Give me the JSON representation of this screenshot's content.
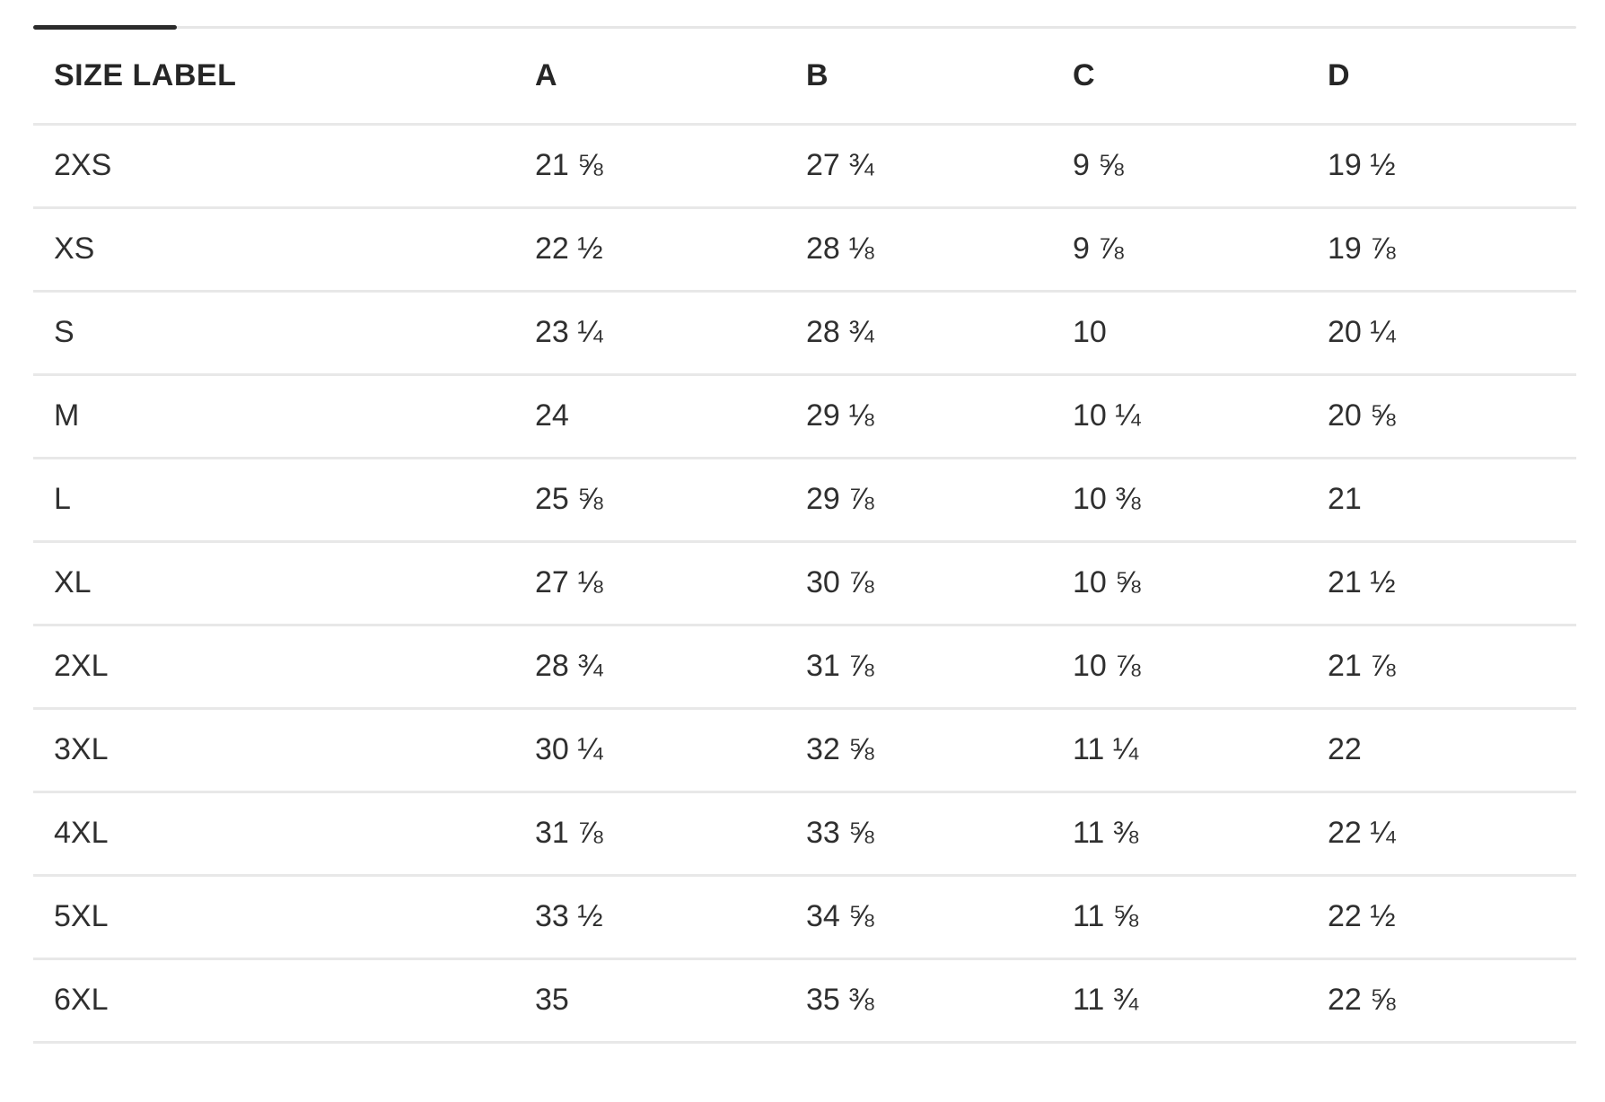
{
  "colors": {
    "background": "#ffffff",
    "header_text": "#262626",
    "body_text": "#2f2f2f",
    "divider": "#e8e8e8",
    "scrollbar_track": "#e6e6e6",
    "scrollbar_thumb": "#2b2b2b"
  },
  "table": {
    "columns": [
      "SIZE LABEL",
      "A",
      "B",
      "C",
      "D"
    ],
    "rows": [
      {
        "label": "2XS",
        "values": [
          "21 ⅝",
          "27 ¾",
          "9 ⅝",
          "19 ½"
        ]
      },
      {
        "label": "XS",
        "values": [
          "22 ½",
          "28 ⅛",
          "9 ⅞",
          "19 ⅞"
        ]
      },
      {
        "label": "S",
        "values": [
          "23 ¼",
          "28 ¾",
          "10",
          "20 ¼"
        ]
      },
      {
        "label": "M",
        "values": [
          "24",
          "29 ⅛",
          "10 ¼",
          "20 ⅝"
        ]
      },
      {
        "label": "L",
        "values": [
          "25 ⅝",
          "29 ⅞",
          "10 ⅜",
          "21"
        ]
      },
      {
        "label": "XL",
        "values": [
          "27 ⅛",
          "30 ⅞",
          "10 ⅝",
          "21 ½"
        ]
      },
      {
        "label": "2XL",
        "values": [
          "28 ¾",
          "31 ⅞",
          "10 ⅞",
          "21 ⅞"
        ]
      },
      {
        "label": "3XL",
        "values": [
          "30 ¼",
          "32 ⅝",
          "11 ¼",
          "22"
        ]
      },
      {
        "label": "4XL",
        "values": [
          "31 ⅞",
          "33 ⅝",
          "11 ⅜",
          "22 ¼"
        ]
      },
      {
        "label": "5XL",
        "values": [
          "33 ½",
          "34 ⅝",
          "11 ⅝",
          "22 ½"
        ]
      },
      {
        "label": "6XL",
        "values": [
          "35",
          "35 ⅜",
          "11 ¾",
          "22 ⅝"
        ]
      }
    ]
  }
}
